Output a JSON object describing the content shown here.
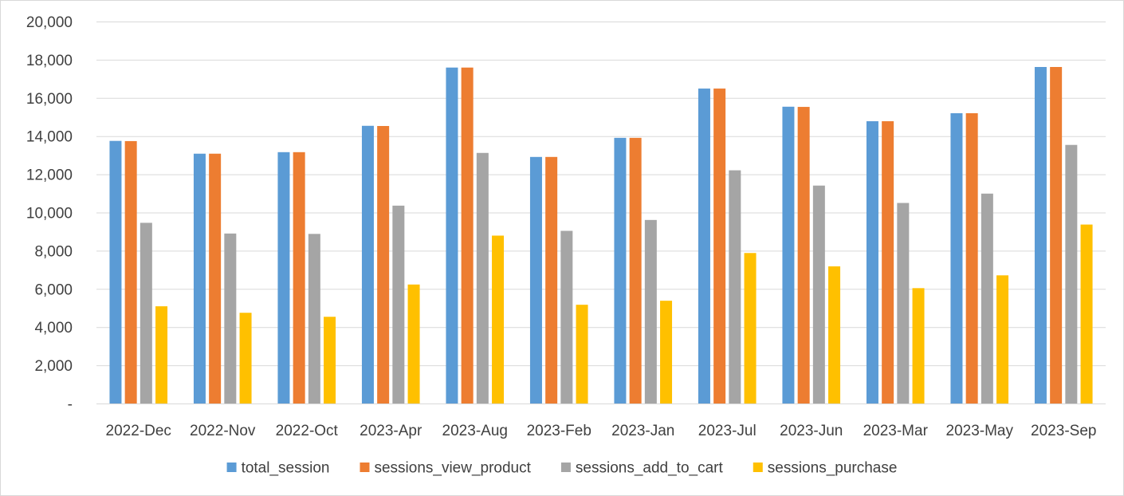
{
  "chart_data": {
    "type": "bar",
    "title": "",
    "xlabel": "",
    "ylabel": "",
    "categories": [
      "2022-Dec",
      "2022-Nov",
      "2022-Oct",
      "2023-Apr",
      "2023-Aug",
      "2023-Feb",
      "2023-Jan",
      "2023-Jul",
      "2023-Jun",
      "2023-Mar",
      "2023-May",
      "2023-Sep"
    ],
    "series": [
      {
        "name": "total_session",
        "color": "#5b9bd5",
        "values": [
          13750,
          13080,
          13160,
          14540,
          17590,
          12910,
          13910,
          16490,
          15540,
          14780,
          15200,
          17620
        ]
      },
      {
        "name": "sessions_view_product",
        "color": "#ed7d31",
        "values": [
          13740,
          13080,
          13160,
          14530,
          17590,
          12910,
          13910,
          16490,
          15530,
          14780,
          15200,
          17620
        ]
      },
      {
        "name": "sessions_add_to_cart",
        "color": "#a5a5a5",
        "values": [
          9460,
          8900,
          8880,
          10360,
          13120,
          9040,
          9610,
          12210,
          11410,
          10500,
          10990,
          13540
        ]
      },
      {
        "name": "sessions_purchase",
        "color": "#ffc000",
        "values": [
          5090,
          4750,
          4540,
          6230,
          8790,
          5170,
          5380,
          7880,
          7180,
          6040,
          6710,
          9370
        ]
      }
    ],
    "ylim": [
      0,
      20000
    ],
    "yticks": [
      0,
      2000,
      4000,
      6000,
      8000,
      10000,
      12000,
      14000,
      16000,
      18000,
      20000
    ],
    "ytick_labels": [
      "-",
      "2,000",
      "4,000",
      "6,000",
      "8,000",
      "10,000",
      "12,000",
      "14,000",
      "16,000",
      "18,000",
      "20,000"
    ],
    "grid": true,
    "legend_position": "bottom"
  }
}
